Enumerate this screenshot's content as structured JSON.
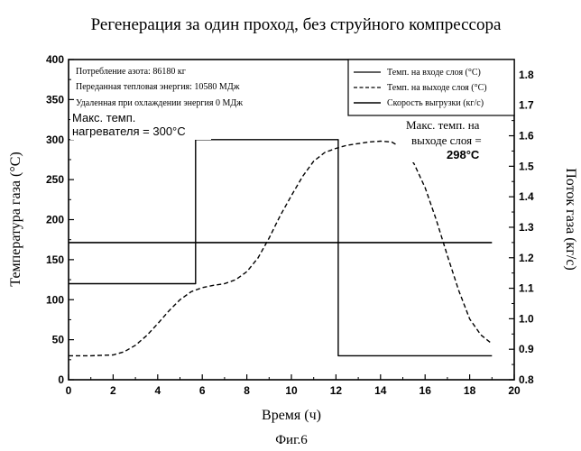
{
  "chart_data": {
    "type": "line",
    "title": "Регенерация за один проход, без струйного компрессора",
    "xlabel": "Время (ч)",
    "ylabel_left": "Температура газа (°C)",
    "ylabel_right": "Поток газа (кг/с)",
    "caption": "Фиг.6",
    "xlim": [
      0,
      20
    ],
    "ylim_left": [
      0,
      400
    ],
    "ylim_right": [
      0.8,
      1.85
    ],
    "x_ticks": [
      "0",
      "2",
      "4",
      "6",
      "8",
      "10",
      "12",
      "14",
      "16",
      "18",
      "20"
    ],
    "y_ticks_left": [
      "0",
      "50",
      "100",
      "150",
      "200",
      "250",
      "300",
      "350",
      "400"
    ],
    "y_ticks_right": [
      "0.8",
      "0.9",
      "1.0",
      "1.1",
      "1.2",
      "1.3",
      "1.4",
      "1.5",
      "1.6",
      "1.7",
      "1.8"
    ],
    "info_lines": [
      "Потребление азота: 86180 кг",
      "Переданная тепловая энергия: 10580 МДж",
      "Удаленная при охлаждении энергия 0 МДж"
    ],
    "legend_position": "top-right",
    "series": [
      {
        "name": "Темп. на входе слоя (°C)",
        "axis": "left",
        "style": "solid",
        "x": [
          0,
          5.7,
          5.7,
          12.1,
          12.1,
          19
        ],
        "y": [
          120,
          120,
          300,
          300,
          30,
          30
        ]
      },
      {
        "name": "Темп. на выходе слоя (°C)",
        "axis": "left",
        "style": "dashed",
        "x": [
          0,
          1,
          2,
          2.5,
          3,
          3.5,
          4,
          4.5,
          5,
          5.5,
          6,
          6.5,
          7,
          7.5,
          8,
          8.5,
          9,
          9.5,
          10,
          10.5,
          11,
          11.5,
          12,
          12.5,
          13,
          13.5,
          14,
          14.5,
          15,
          15.5,
          16,
          16.5,
          17,
          17.5,
          18,
          18.5,
          19
        ],
        "y": [
          30,
          30,
          31,
          35,
          43,
          55,
          70,
          86,
          100,
          110,
          115,
          118,
          120,
          125,
          135,
          152,
          177,
          205,
          230,
          254,
          273,
          284,
          289,
          293,
          295,
          297,
          298,
          297,
          289,
          270,
          240,
          200,
          155,
          112,
          76,
          56,
          45
        ]
      },
      {
        "name": "Скорость выгрузки (кг/с)",
        "axis": "right",
        "style": "solid",
        "x": [
          0,
          19
        ],
        "y": [
          1.25,
          1.25
        ]
      }
    ],
    "annotations": [
      {
        "lines": [
          "Макс. темп.",
          "нагревателя = 300°C"
        ],
        "x": 6,
        "y": 300
      },
      {
        "lines": [
          "Макс. темп. на",
          "выходе слоя =",
          "298°C"
        ],
        "x": 14,
        "y": 298
      }
    ]
  }
}
